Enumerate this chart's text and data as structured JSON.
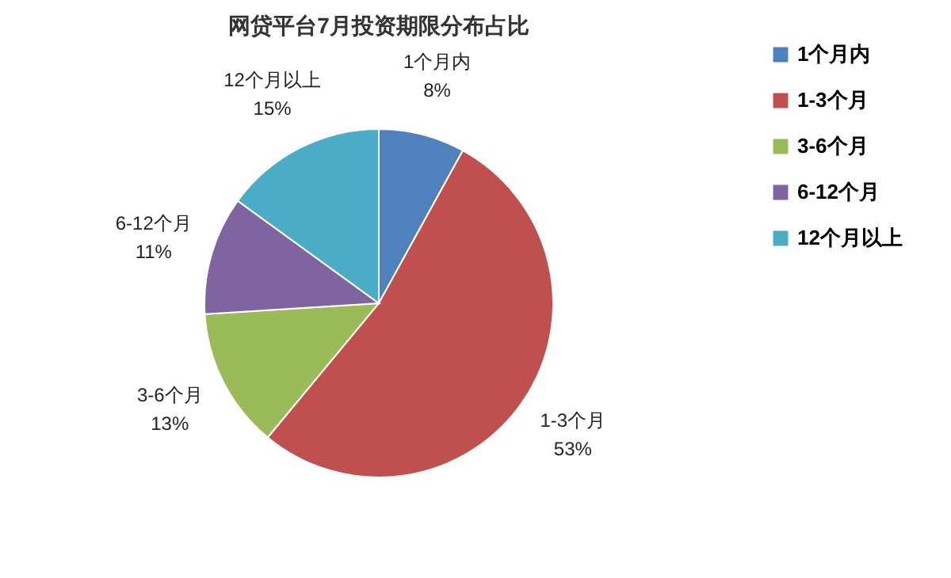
{
  "chart_data": {
    "type": "pie",
    "title": "网贷平台7月投资期限分布占比",
    "categories": [
      "1个月内",
      "1-3个月",
      "3-6个月",
      "6-12个月",
      "12个月以上"
    ],
    "values": [
      8,
      53,
      13,
      11,
      15
    ],
    "colors": [
      "#4f81bd",
      "#c0504d",
      "#9bbb59",
      "#8064a2",
      "#4bacc6"
    ],
    "value_labels": [
      "8%",
      "53%",
      "13%",
      "11%",
      "15%"
    ],
    "legend": "right"
  }
}
